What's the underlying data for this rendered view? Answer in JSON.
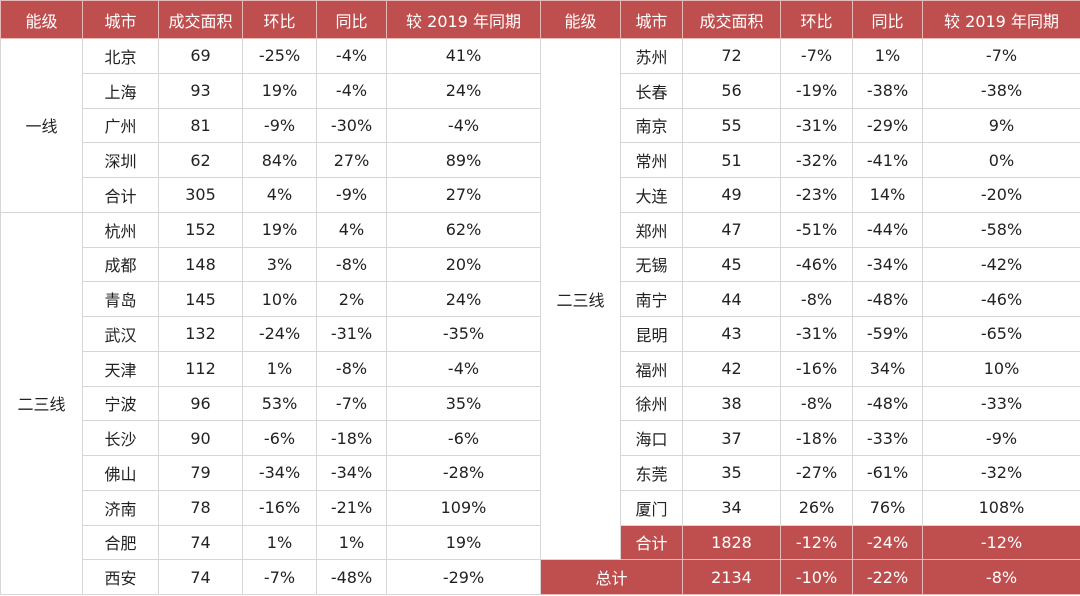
{
  "table": {
    "header": [
      "能级",
      "城市",
      "成交面积",
      "环比",
      "同比",
      "较 2019 年同期",
      "能级",
      "城市",
      "成交面积",
      "环比",
      "同比",
      "较 2019 年同期"
    ],
    "left": [
      {
        "tier": "一线",
        "rows": [
          [
            "北京",
            "69",
            "-25%",
            "-4%",
            "41%"
          ],
          [
            "上海",
            "93",
            "19%",
            "-4%",
            "24%"
          ],
          [
            "广州",
            "81",
            "-9%",
            "-30%",
            "-4%"
          ],
          [
            "深圳",
            "62",
            "84%",
            "27%",
            "89%"
          ],
          [
            "合计",
            "305",
            "4%",
            "-9%",
            "27%"
          ]
        ]
      },
      {
        "tier": "二三线",
        "rows": [
          [
            "杭州",
            "152",
            "19%",
            "4%",
            "62%"
          ],
          [
            "成都",
            "148",
            "3%",
            "-8%",
            "20%"
          ],
          [
            "青岛",
            "145",
            "10%",
            "2%",
            "24%"
          ],
          [
            "武汉",
            "132",
            "-24%",
            "-31%",
            "-35%"
          ],
          [
            "天津",
            "112",
            "1%",
            "-8%",
            "-4%"
          ],
          [
            "宁波",
            "96",
            "53%",
            "-7%",
            "35%"
          ],
          [
            "长沙",
            "90",
            "-6%",
            "-18%",
            "-6%"
          ],
          [
            "佛山",
            "79",
            "-34%",
            "-34%",
            "-28%"
          ],
          [
            "济南",
            "78",
            "-16%",
            "-21%",
            "109%"
          ],
          [
            "合肥",
            "74",
            "1%",
            "1%",
            "19%"
          ],
          [
            "西安",
            "74",
            "-7%",
            "-48%",
            "-29%"
          ]
        ]
      }
    ],
    "right": [
      {
        "tier": "二三线",
        "rows": [
          [
            "苏州",
            "72",
            "-7%",
            "1%",
            "-7%"
          ],
          [
            "长春",
            "56",
            "-19%",
            "-38%",
            "-38%"
          ],
          [
            "南京",
            "55",
            "-31%",
            "-29%",
            "9%"
          ],
          [
            "常州",
            "51",
            "-32%",
            "-41%",
            "0%"
          ],
          [
            "大连",
            "49",
            "-23%",
            "14%",
            "-20%"
          ],
          [
            "郑州",
            "47",
            "-51%",
            "-44%",
            "-58%"
          ],
          [
            "无锡",
            "45",
            "-46%",
            "-34%",
            "-42%"
          ],
          [
            "南宁",
            "44",
            "-8%",
            "-48%",
            "-46%"
          ],
          [
            "昆明",
            "43",
            "-31%",
            "-59%",
            "-65%"
          ],
          [
            "福州",
            "42",
            "-16%",
            "34%",
            "10%"
          ],
          [
            "徐州",
            "38",
            "-8%",
            "-48%",
            "-33%"
          ],
          [
            "海口",
            "37",
            "-18%",
            "-33%",
            "-9%"
          ],
          [
            "东莞",
            "35",
            "-27%",
            "-61%",
            "-32%"
          ],
          [
            "厦门",
            "34",
            "26%",
            "76%",
            "108%"
          ],
          [
            "合计",
            "1828",
            "-12%",
            "-24%",
            "-12%"
          ]
        ]
      }
    ],
    "total": [
      "总计",
      "2134",
      "-10%",
      "-22%",
      "-8%"
    ]
  }
}
